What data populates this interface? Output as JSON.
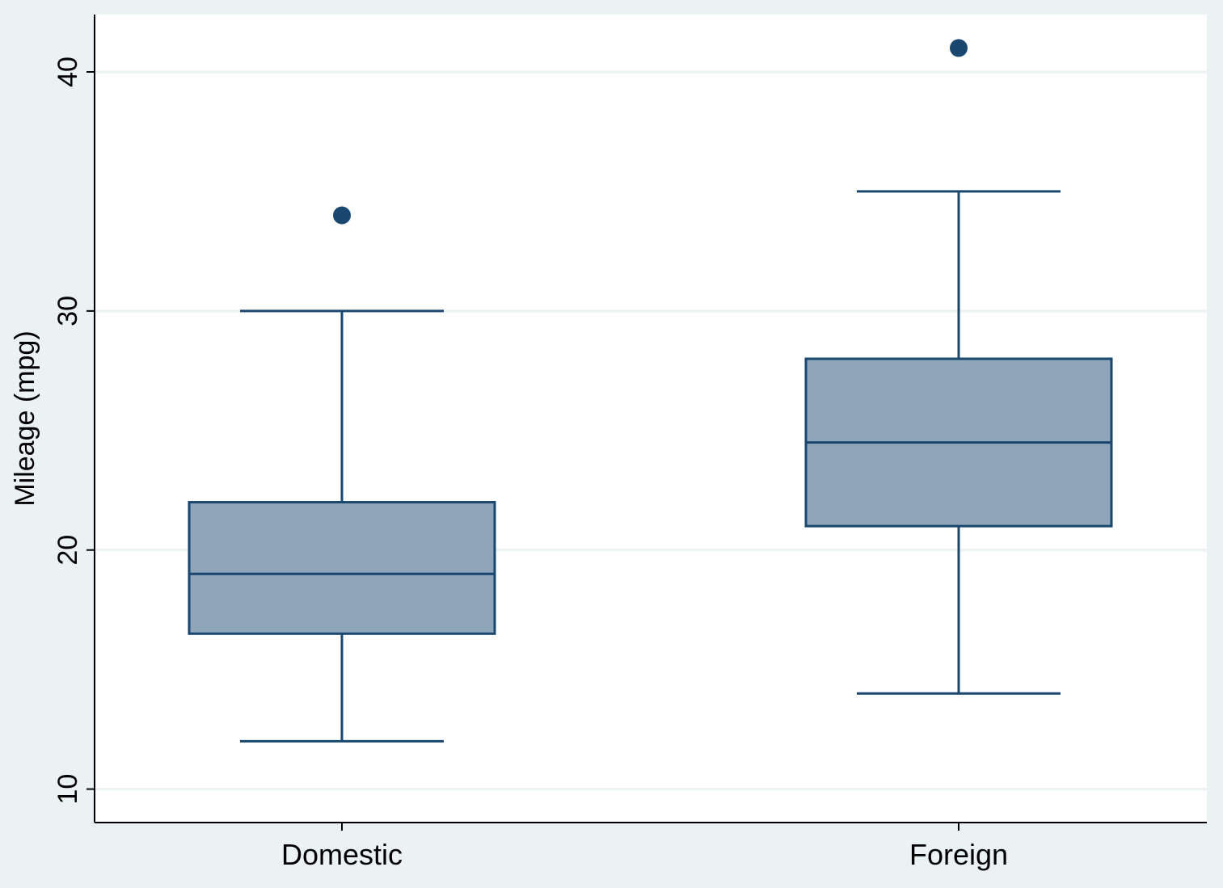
{
  "chart_data": {
    "type": "box",
    "ylabel": "Mileage (mpg)",
    "xlabel": "",
    "ylim": [
      8.6,
      42.4
    ],
    "yticks": [
      10,
      20,
      30,
      40
    ],
    "grid": true,
    "categories": [
      "Domestic",
      "Foreign"
    ],
    "boxes": [
      {
        "category": "Domestic",
        "whisker_low": 12,
        "q1": 16.5,
        "median": 19,
        "q3": 22,
        "whisker_high": 30,
        "outliers": [
          34
        ]
      },
      {
        "category": "Foreign",
        "whisker_low": 14,
        "q1": 21,
        "median": 24.5,
        "q3": 28,
        "whisker_high": 35,
        "outliers": [
          41
        ]
      }
    ],
    "colors": {
      "box_fill": "#8fa5b9",
      "box_stroke": "#1a476f",
      "grid": "#eaf2f3",
      "plot_bg": "#ffffff",
      "outer_bg": "#eaf2f3"
    }
  }
}
